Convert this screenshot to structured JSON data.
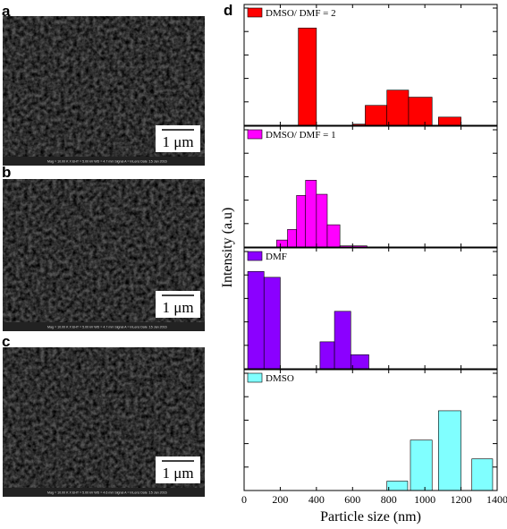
{
  "images": [
    {
      "letter": "a",
      "scale_bar": "1 μm",
      "info": "Mag = 10.00 K X    EHT = 5.00 kV    WD = 4.7 mm    Signal A = InLens    Date :15 Jan 2016"
    },
    {
      "letter": "b",
      "scale_bar": "1 μm",
      "info": "Mag = 10.00 K X    EHT = 5.00 kV    WD = 4.7 mm    Signal A = InLens    Date :15 Jan 2016"
    },
    {
      "letter": "c",
      "scale_bar": "1 μm",
      "info": "Mag = 10.00 K X    EHT = 5.00 kV    WD = 4.6 mm    Signal A = InLens    Date :15 Jan 2016"
    }
  ],
  "chart_letter": "d",
  "y_label": "Intensity (a.u)",
  "chart_data": [
    {
      "type": "histogram",
      "bins": [
        300,
        400,
        600,
        670,
        790,
        910,
        1040,
        1075,
        1200
      ],
      "series": [
        {
          "name": "DMSO/ DMF = 2",
          "color": "#ff0000",
          "values": [
            83,
            0,
            1,
            17,
            30,
            24,
            0,
            7
          ]
        }
      ],
      "xlim": [
        0,
        1400
      ],
      "ylim": [
        0,
        100
      ],
      "yticks": [
        0,
        20,
        40,
        60,
        80,
        100
      ]
    },
    {
      "type": "histogram",
      "bins": [
        180,
        240,
        290,
        340,
        400,
        460,
        530,
        600,
        680
      ],
      "series": [
        {
          "name": "DMSO/ DMF = 1",
          "color": "#ff00ff",
          "values": [
            6,
            15,
            44,
            57,
            45,
            19,
            1,
            1
          ]
        }
      ],
      "xlim": [
        0,
        1400
      ],
      "ylim": [
        0,
        100
      ],
      "yticks": [
        0,
        20,
        40,
        60,
        80,
        100
      ]
    },
    {
      "type": "histogram",
      "bins": [
        20,
        110,
        200,
        420,
        500,
        590,
        690
      ],
      "series": [
        {
          "name": "DMF",
          "color": "#8b00ff",
          "values": [
            83,
            78,
            0,
            23,
            49,
            12
          ]
        }
      ],
      "xlim": [
        0,
        1400
      ],
      "ylim": [
        0,
        100
      ],
      "yticks": [
        0,
        20,
        40,
        60,
        80,
        100
      ]
    },
    {
      "type": "histogram",
      "bins": [
        790,
        905,
        920,
        1040,
        1075,
        1200,
        1260,
        1375
      ],
      "series": [
        {
          "name": "DMSO",
          "color": "#80ffff",
          "values": [
            8,
            0,
            43,
            0,
            68,
            0,
            27
          ]
        }
      ],
      "xlim": [
        0,
        1400
      ],
      "ylim": [
        0,
        100
      ],
      "yticks": [
        0,
        20,
        40,
        60,
        80,
        100
      ],
      "xticks": [
        0,
        200,
        400,
        600,
        800,
        1000,
        1200,
        1400
      ],
      "x_label": "Particle size (nm)"
    }
  ]
}
